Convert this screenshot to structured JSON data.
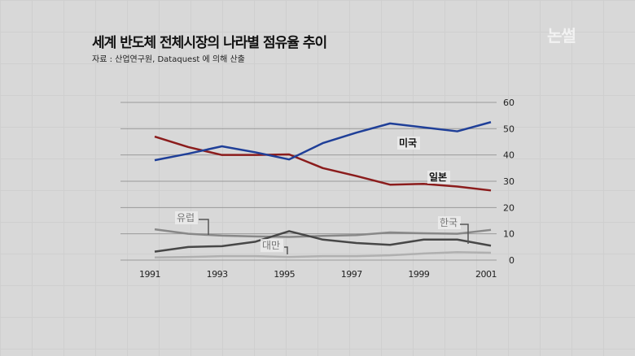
{
  "title": "세계 반도체 전체시장의 나라별 점유율 추이",
  "source": "자료 : 산업연구원,  Dataquest 에 의해 산출",
  "logo": "논썰",
  "chart_data": {
    "type": "line",
    "x": [
      1991,
      1992,
      1993,
      1994,
      1995,
      1996,
      1997,
      1998,
      1999,
      2000,
      2001
    ],
    "xticks": [
      "1991",
      "1993",
      "1995",
      "1997",
      "1999",
      "2001"
    ],
    "yticks": [
      "0",
      "10",
      "20",
      "30",
      "40",
      "50",
      "60"
    ],
    "ylim": [
      0,
      60
    ],
    "grid": true,
    "series": [
      {
        "name": "미국",
        "color": "#1f3f98",
        "values": [
          38,
          40.5,
          43.3,
          41,
          38.3,
          44.5,
          48.5,
          52,
          50.5,
          49,
          52.5
        ]
      },
      {
        "name": "일본",
        "color": "#8b1c1c",
        "values": [
          47,
          43,
          40,
          40,
          40.2,
          35,
          32,
          28.7,
          29,
          28,
          26.5
        ]
      },
      {
        "name": "유럽",
        "color": "#888888",
        "values": [
          11.7,
          10,
          9.3,
          9,
          8.8,
          9.2,
          9.5,
          10.5,
          10.2,
          10,
          11.5
        ]
      },
      {
        "name": "한국",
        "color": "#474747",
        "values": [
          3.2,
          5,
          5.3,
          7,
          11,
          7.8,
          6.5,
          5.8,
          7.8,
          7.8,
          5.5
        ]
      },
      {
        "name": "대만",
        "color": "#b0b0b0",
        "values": [
          1,
          1.2,
          1.5,
          1.5,
          1.2,
          1.5,
          1.5,
          1.8,
          2.5,
          3,
          2.8
        ]
      }
    ]
  }
}
